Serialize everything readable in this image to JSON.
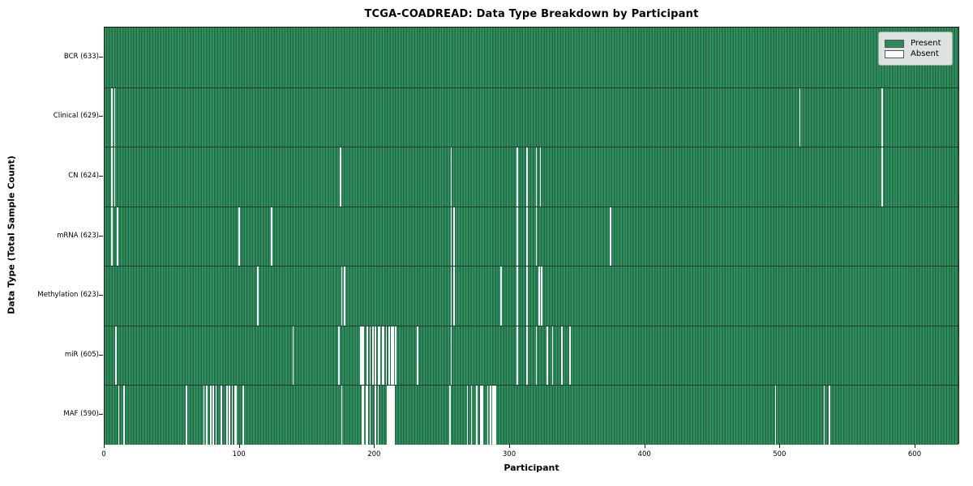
{
  "chart_data": {
    "type": "heatmap",
    "title": "TCGA-COADREAD: Data Type Breakdown by Participant",
    "xlabel": "Participant",
    "ylabel": "Data Type (Total Sample Count)",
    "n_participants": 633,
    "x_ticks": [
      0,
      100,
      200,
      300,
      400,
      500,
      600
    ],
    "grid": false,
    "legend_position": "upper right",
    "colors": {
      "present": "#2e8b57",
      "absent": "#ffffff"
    },
    "legend": [
      {
        "label": "Present",
        "color": "#2e8b57"
      },
      {
        "label": "Absent",
        "color": "#ffffff"
      }
    ],
    "rows": [
      {
        "name": "BCR",
        "label": "BCR (633)",
        "total_present": 633,
        "absent_participants": []
      },
      {
        "name": "Clinical",
        "label": "Clinical (629)",
        "total_present": 629,
        "absent_participants": [
          5,
          7,
          514,
          575
        ]
      },
      {
        "name": "CN",
        "label": "CN (624)",
        "total_present": 624,
        "absent_participants": [
          5,
          7,
          174,
          256,
          305,
          312,
          319,
          322,
          575
        ]
      },
      {
        "name": "mRNA",
        "label": "mRNA (623)",
        "total_present": 623,
        "absent_participants": [
          5,
          9,
          99,
          123,
          256,
          258,
          305,
          312,
          319,
          374
        ]
      },
      {
        "name": "Methylation",
        "label": "Methylation (623)",
        "total_present": 623,
        "absent_participants": [
          113,
          175,
          177,
          256,
          258,
          293,
          305,
          312,
          321,
          323
        ]
      },
      {
        "name": "miR",
        "label": "miR (605)",
        "total_present": 605,
        "absent_participants": [
          8,
          139,
          173,
          189,
          190,
          191,
          194,
          196,
          198,
          200,
          202,
          203,
          205,
          206,
          208,
          210,
          212,
          213,
          215,
          231,
          256,
          305,
          312,
          319,
          327,
          331,
          338,
          344
        ]
      },
      {
        "name": "MAF",
        "label": "MAF (590)",
        "total_present": 590,
        "absent_participants": [
          10,
          14,
          60,
          73,
          75,
          78,
          80,
          82,
          86,
          90,
          92,
          94,
          96,
          97,
          102,
          175,
          190,
          191,
          193,
          194,
          196,
          200,
          202,
          209,
          210,
          211,
          212,
          213,
          214,
          255,
          268,
          271,
          275,
          278,
          279,
          283,
          285,
          287,
          288,
          289,
          496,
          532,
          536
        ]
      }
    ]
  }
}
